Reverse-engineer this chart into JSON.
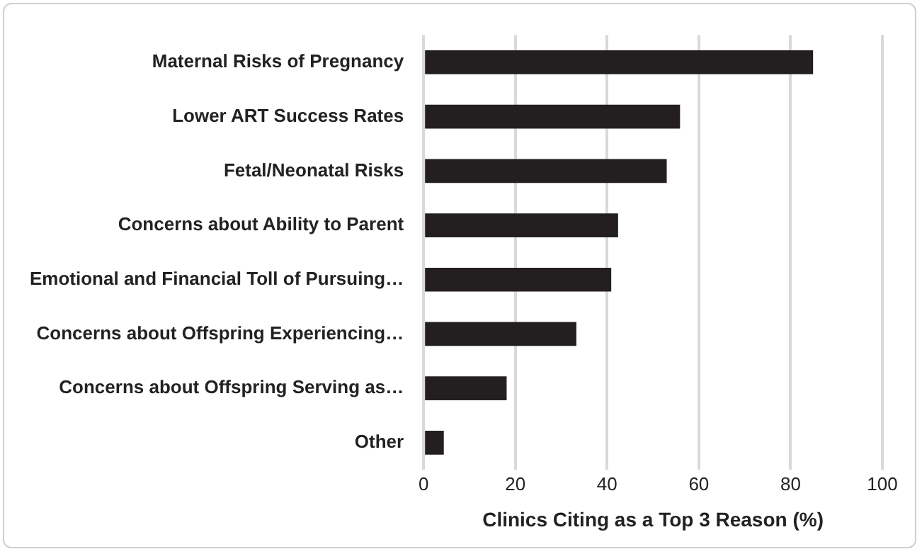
{
  "chart_data": {
    "type": "bar",
    "orientation": "horizontal",
    "xlabel": "Clinics Citing as a Top 3 Reason (%)",
    "categories": [
      "Maternal Risks of Pregnancy",
      "Lower ART Success Rates",
      "Fetal/Neonatal Risks",
      "Concerns about Ability to Parent",
      "Emotional and Financial Toll of Pursuing…",
      "Concerns about Offspring Experiencing…",
      "Concerns about Offspring Serving as…",
      "Other"
    ],
    "values": [
      84.9,
      55.9,
      53.0,
      42.4,
      40.9,
      33.3,
      18.1,
      4.4
    ],
    "color": "#231f20",
    "xlim": [
      0,
      100
    ],
    "xticks": [
      0,
      20,
      40,
      60,
      80,
      100
    ],
    "grid": "x",
    "legend": false
  }
}
